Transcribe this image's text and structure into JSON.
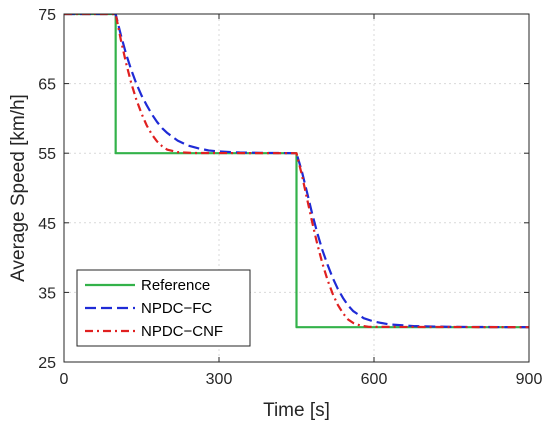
{
  "chart_data": {
    "type": "line",
    "xlabel": "Time [s]",
    "ylabel": "Average Speed [km/h]",
    "xlim": [
      0,
      900
    ],
    "ylim": [
      25,
      75
    ],
    "xticks": [
      0,
      300,
      600,
      900
    ],
    "yticks": [
      25,
      35,
      45,
      55,
      65,
      75
    ],
    "grid": true,
    "legend_position": "bottom-left",
    "series": [
      {
        "name": "Reference",
        "color": "#33b24a",
        "style": "solid",
        "points": [
          [
            0,
            75
          ],
          [
            100,
            75
          ],
          [
            100,
            55
          ],
          [
            450,
            55
          ],
          [
            450,
            30
          ],
          [
            900,
            30
          ]
        ]
      },
      {
        "name": "NPDC−FC",
        "color": "#1f2bd6",
        "style": "dashed",
        "points": [
          [
            0,
            75
          ],
          [
            100,
            75
          ],
          [
            110,
            72
          ],
          [
            120,
            69.3
          ],
          [
            130,
            67
          ],
          [
            140,
            65
          ],
          [
            150,
            63.3
          ],
          [
            160,
            61.9
          ],
          [
            170,
            60.6
          ],
          [
            180,
            59.5
          ],
          [
            190,
            58.6
          ],
          [
            200,
            57.9
          ],
          [
            220,
            56.8
          ],
          [
            240,
            56.1
          ],
          [
            260,
            55.7
          ],
          [
            280,
            55.4
          ],
          [
            300,
            55.25
          ],
          [
            340,
            55.1
          ],
          [
            380,
            55.05
          ],
          [
            450,
            55
          ],
          [
            460,
            52.5
          ],
          [
            470,
            49.5
          ],
          [
            480,
            46.4
          ],
          [
            490,
            43.6
          ],
          [
            500,
            41.1
          ],
          [
            510,
            39
          ],
          [
            520,
            37.1
          ],
          [
            530,
            35.5
          ],
          [
            540,
            34.2
          ],
          [
            550,
            33.1
          ],
          [
            560,
            32.3
          ],
          [
            580,
            31.3
          ],
          [
            600,
            30.8
          ],
          [
            630,
            30.4
          ],
          [
            680,
            30.15
          ],
          [
            750,
            30.05
          ],
          [
            900,
            30
          ]
        ]
      },
      {
        "name": "NPDC−CNF",
        "color": "#e02020",
        "style": "dashdot",
        "points": [
          [
            0,
            75
          ],
          [
            100,
            75
          ],
          [
            110,
            71.3
          ],
          [
            120,
            68
          ],
          [
            130,
            65.1
          ],
          [
            140,
            62.7
          ],
          [
            150,
            60.7
          ],
          [
            160,
            59
          ],
          [
            170,
            57.7
          ],
          [
            180,
            56.7
          ],
          [
            190,
            56
          ],
          [
            200,
            55.5
          ],
          [
            220,
            55.15
          ],
          [
            250,
            55.03
          ],
          [
            450,
            55
          ],
          [
            460,
            52
          ],
          [
            470,
            48.6
          ],
          [
            480,
            45.2
          ],
          [
            490,
            42
          ],
          [
            500,
            39.2
          ],
          [
            510,
            36.8
          ],
          [
            520,
            34.8
          ],
          [
            530,
            33.2
          ],
          [
            540,
            32
          ],
          [
            550,
            31.1
          ],
          [
            560,
            30.6
          ],
          [
            575,
            30.2
          ],
          [
            590,
            30.05
          ],
          [
            900,
            30
          ]
        ]
      }
    ]
  }
}
